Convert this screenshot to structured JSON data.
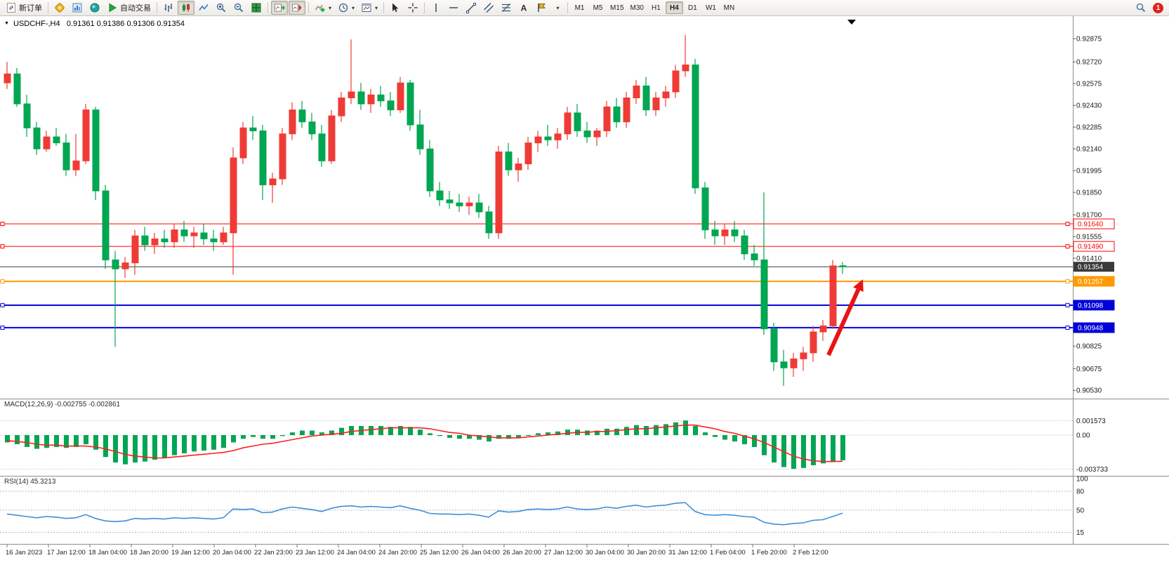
{
  "toolbar": {
    "new_order": "新订单",
    "auto_trading": "自动交易",
    "timeframes": [
      "M1",
      "M5",
      "M15",
      "M30",
      "H1",
      "H4",
      "D1",
      "W1",
      "MN"
    ],
    "active_timeframe": "H4",
    "notification_count": "1"
  },
  "chart": {
    "title_symbol": "USDCHF-,H4",
    "title_ohlc": "0.91361 0.91386 0.91306 0.91354",
    "macd_label": "MACD(12,26,9) -0.002755 -0.002861",
    "rsi_label": "RSI(14) 45.3213"
  },
  "chart_data": {
    "type": "candlestick",
    "symbol": "USDCHF-",
    "timeframe": "H4",
    "current_bar": {
      "open": 0.91361,
      "high": 0.91386,
      "low": 0.91306,
      "close": 0.91354
    },
    "up_color": "#ef3b35",
    "down_color": "#00a651",
    "price_axis_labels": [
      "0.92875",
      "0.92720",
      "0.92575",
      "0.92430",
      "0.92285",
      "0.92140",
      "0.91995",
      "0.91850",
      "0.91700",
      "0.91555",
      "0.91410",
      "0.90825",
      "0.90675",
      "0.90530"
    ],
    "time_axis_labels": [
      "16 Jan 2023",
      "17 Jan 12:00",
      "18 Jan 04:00",
      "18 Jan 20:00",
      "19 Jan 12:00",
      "20 Jan 04:00",
      "22 Jan 23:00",
      "23 Jan 12:00",
      "24 Jan 04:00",
      "24 Jan 20:00",
      "25 Jan 12:00",
      "26 Jan 04:00",
      "26 Jan 20:00",
      "27 Jan 12:00",
      "30 Jan 04:00",
      "30 Jan 20:00",
      "31 Jan 12:00",
      "1 Feb 04:00",
      "1 Feb 20:00",
      "2 Feb 12:00"
    ],
    "hlines": [
      {
        "label": "0.91640",
        "price": 0.9164,
        "color": "#ff0000",
        "style": "outline",
        "thickness": 1
      },
      {
        "label": "0.91490",
        "price": 0.9149,
        "color": "#ff0000",
        "style": "outline",
        "thickness": 1
      },
      {
        "label": "0.91257",
        "price": 0.91257,
        "color": "#ff9a00",
        "style": "solid",
        "thickness": 2
      },
      {
        "label": "0.91098",
        "price": 0.91098,
        "color": "#0000d8",
        "style": "solid",
        "thickness": 2
      },
      {
        "label": "0.90948",
        "price": 0.90948,
        "color": "#0000d8",
        "style": "solid",
        "thickness": 2
      }
    ],
    "current_price": {
      "label": "0.91354",
      "price": 0.91354,
      "color": "#3a3a3a"
    },
    "annotations": [
      {
        "type": "arrow-up",
        "color": "#ea1313"
      }
    ],
    "candles": [
      [
        0.9258,
        0.9272,
        0.9254,
        0.9264
      ],
      [
        0.9264,
        0.9268,
        0.9242,
        0.9244
      ],
      [
        0.9244,
        0.925,
        0.9222,
        0.9228
      ],
      [
        0.9228,
        0.9232,
        0.921,
        0.9214
      ],
      [
        0.9214,
        0.9226,
        0.9212,
        0.9222
      ],
      [
        0.9222,
        0.9228,
        0.9216,
        0.9218
      ],
      [
        0.9218,
        0.9224,
        0.9196,
        0.92
      ],
      [
        0.92,
        0.9224,
        0.9196,
        0.9206
      ],
      [
        0.9206,
        0.9244,
        0.9204,
        0.924
      ],
      [
        0.924,
        0.9242,
        0.918,
        0.9186
      ],
      [
        0.9186,
        0.919,
        0.9134,
        0.914
      ],
      [
        0.914,
        0.9146,
        0.9082,
        0.9134
      ],
      [
        0.9134,
        0.9142,
        0.9128,
        0.9138
      ],
      [
        0.9138,
        0.916,
        0.913,
        0.9156
      ],
      [
        0.9156,
        0.9162,
        0.9146,
        0.915
      ],
      [
        0.915,
        0.9158,
        0.9144,
        0.9154
      ],
      [
        0.9154,
        0.916,
        0.9148,
        0.9152
      ],
      [
        0.9152,
        0.9164,
        0.9148,
        0.916
      ],
      [
        0.916,
        0.9166,
        0.9152,
        0.9156
      ],
      [
        0.9156,
        0.9162,
        0.9148,
        0.9158
      ],
      [
        0.9158,
        0.9164,
        0.915,
        0.9154
      ],
      [
        0.9154,
        0.916,
        0.9146,
        0.9152
      ],
      [
        0.9152,
        0.9162,
        0.915,
        0.9158
      ],
      [
        0.9158,
        0.9215,
        0.913,
        0.9208
      ],
      [
        0.9208,
        0.9232,
        0.9204,
        0.9228
      ],
      [
        0.9228,
        0.9236,
        0.922,
        0.9226
      ],
      [
        0.9226,
        0.923,
        0.918,
        0.919
      ],
      [
        0.919,
        0.9198,
        0.9178,
        0.9194
      ],
      [
        0.9194,
        0.9228,
        0.919,
        0.9224
      ],
      [
        0.9224,
        0.9245,
        0.922,
        0.924
      ],
      [
        0.924,
        0.9246,
        0.9228,
        0.9232
      ],
      [
        0.9232,
        0.9238,
        0.922,
        0.9224
      ],
      [
        0.9224,
        0.923,
        0.9202,
        0.9206
      ],
      [
        0.9206,
        0.924,
        0.9204,
        0.9236
      ],
      [
        0.9236,
        0.9252,
        0.9232,
        0.9248
      ],
      [
        0.9248,
        0.9287,
        0.9244,
        0.9252
      ],
      [
        0.9252,
        0.9258,
        0.924,
        0.9244
      ],
      [
        0.9244,
        0.9254,
        0.9238,
        0.925
      ],
      [
        0.925,
        0.9256,
        0.9242,
        0.9246
      ],
      [
        0.9246,
        0.9252,
        0.9236,
        0.924
      ],
      [
        0.924,
        0.9262,
        0.9238,
        0.9258
      ],
      [
        0.9258,
        0.926,
        0.9226,
        0.923
      ],
      [
        0.923,
        0.924,
        0.921,
        0.9214
      ],
      [
        0.9214,
        0.922,
        0.9182,
        0.9186
      ],
      [
        0.9186,
        0.9192,
        0.9176,
        0.918
      ],
      [
        0.918,
        0.9186,
        0.9174,
        0.9178
      ],
      [
        0.9178,
        0.9184,
        0.9172,
        0.9176
      ],
      [
        0.9176,
        0.9182,
        0.917,
        0.9178
      ],
      [
        0.9178,
        0.9184,
        0.9168,
        0.9172
      ],
      [
        0.9172,
        0.9176,
        0.9154,
        0.9158
      ],
      [
        0.9158,
        0.9216,
        0.9154,
        0.9212
      ],
      [
        0.9212,
        0.9218,
        0.9196,
        0.92
      ],
      [
        0.92,
        0.9208,
        0.9192,
        0.9204
      ],
      [
        0.9204,
        0.9222,
        0.92,
        0.9218
      ],
      [
        0.9218,
        0.9226,
        0.9212,
        0.9222
      ],
      [
        0.9222,
        0.923,
        0.9216,
        0.922
      ],
      [
        0.922,
        0.9228,
        0.9214,
        0.9224
      ],
      [
        0.9224,
        0.9242,
        0.922,
        0.9238
      ],
      [
        0.9238,
        0.9244,
        0.9222,
        0.9226
      ],
      [
        0.9226,
        0.9232,
        0.9218,
        0.9222
      ],
      [
        0.9222,
        0.9228,
        0.9216,
        0.9226
      ],
      [
        0.9226,
        0.9246,
        0.9222,
        0.9242
      ],
      [
        0.9242,
        0.9248,
        0.9228,
        0.9232
      ],
      [
        0.9232,
        0.9252,
        0.9228,
        0.9248
      ],
      [
        0.9248,
        0.926,
        0.9244,
        0.9256
      ],
      [
        0.9256,
        0.9262,
        0.9236,
        0.924
      ],
      [
        0.924,
        0.9252,
        0.9236,
        0.9248
      ],
      [
        0.9248,
        0.9256,
        0.9242,
        0.9252
      ],
      [
        0.9252,
        0.927,
        0.9248,
        0.9266
      ],
      [
        0.9266,
        0.929,
        0.9262,
        0.927
      ],
      [
        0.927,
        0.9274,
        0.9184,
        0.9188
      ],
      [
        0.9188,
        0.9192,
        0.9154,
        0.916
      ],
      [
        0.916,
        0.9166,
        0.915,
        0.9156
      ],
      [
        0.9156,
        0.9164,
        0.915,
        0.916
      ],
      [
        0.916,
        0.9166,
        0.9152,
        0.9156
      ],
      [
        0.9156,
        0.916,
        0.914,
        0.9144
      ],
      [
        0.9144,
        0.915,
        0.9136,
        0.914
      ],
      [
        0.914,
        0.9185,
        0.909,
        0.9094
      ],
      [
        0.9094,
        0.9098,
        0.9066,
        0.9072
      ],
      [
        0.9072,
        0.908,
        0.9056,
        0.9068
      ],
      [
        0.9068,
        0.9078,
        0.9062,
        0.9074
      ],
      [
        0.9074,
        0.9082,
        0.9066,
        0.9078
      ],
      [
        0.9078,
        0.9096,
        0.9072,
        0.9092
      ],
      [
        0.9092,
        0.91,
        0.9086,
        0.9096
      ],
      [
        0.9096,
        0.914,
        0.9094,
        0.9136
      ],
      [
        0.91361,
        0.91386,
        0.91306,
        0.91354
      ]
    ],
    "macd": {
      "params": "12,26,9",
      "value": -0.002755,
      "signal_value": -0.002861,
      "scale_labels": [
        {
          "text": "0.001573",
          "value": 0.001573
        },
        {
          "text": "0.00",
          "value": 0
        },
        {
          "text": "-0.003733",
          "value": -0.003733
        }
      ],
      "histogram": [
        -0.0008,
        -0.001,
        -0.0013,
        -0.0015,
        -0.0014,
        -0.0013,
        -0.0014,
        -0.0013,
        -0.001,
        -0.0016,
        -0.0024,
        -0.003,
        -0.0032,
        -0.003,
        -0.0029,
        -0.0027,
        -0.0025,
        -0.0022,
        -0.002,
        -0.0018,
        -0.0017,
        -0.0016,
        -0.0014,
        -0.0008,
        -0.0004,
        -0.0002,
        -0.0004,
        -0.0004,
        -0.0001,
        0.0003,
        0.0005,
        0.0005,
        0.0003,
        0.0005,
        0.0008,
        0.001,
        0.001,
        0.001,
        0.001,
        0.0009,
        0.001,
        0.0009,
        0.0006,
        0.0002,
        -0.0001,
        -0.0003,
        -0.0004,
        -0.0004,
        -0.0005,
        -0.0007,
        -0.0004,
        -0.0004,
        -0.0003,
        0.0,
        0.0002,
        0.0003,
        0.0004,
        0.0006,
        0.0006,
        0.0005,
        0.0005,
        0.0007,
        0.0007,
        0.0009,
        0.0011,
        0.001,
        0.0011,
        0.0012,
        0.0014,
        0.0016,
        0.001,
        0.0003,
        -0.0002,
        -0.0005,
        -0.0007,
        -0.001,
        -0.0013,
        -0.0022,
        -0.003,
        -0.0035,
        -0.0037,
        -0.0036,
        -0.0033,
        -0.0031,
        -0.0029,
        -0.002755
      ],
      "signal": [
        -0.0006,
        -0.0007,
        -0.0008,
        -0.001,
        -0.0011,
        -0.0011,
        -0.0012,
        -0.0012,
        -0.0012,
        -0.0013,
        -0.0015,
        -0.0018,
        -0.0021,
        -0.0023,
        -0.0024,
        -0.0025,
        -0.0025,
        -0.0024,
        -0.0023,
        -0.0022,
        -0.0021,
        -0.002,
        -0.0019,
        -0.0017,
        -0.0014,
        -0.0012,
        -0.001,
        -0.0009,
        -0.0007,
        -0.0005,
        -0.0003,
        -0.0001,
        0.0,
        0.0001,
        0.0002,
        0.0004,
        0.0005,
        0.0006,
        0.0007,
        0.0008,
        0.0008,
        0.0008,
        0.0008,
        0.0007,
        0.0005,
        0.0003,
        0.0002,
        0.0,
        -0.0001,
        -0.0002,
        -0.0003,
        -0.0003,
        -0.0003,
        -0.0002,
        -0.0001,
        0.0,
        0.0001,
        0.0002,
        0.0003,
        0.0003,
        0.0004,
        0.0004,
        0.0005,
        0.0006,
        0.0007,
        0.0007,
        0.0008,
        0.0009,
        0.001,
        0.0011,
        0.0011,
        0.0009,
        0.0007,
        0.0004,
        0.0002,
        -0.0001,
        -0.0004,
        -0.0008,
        -0.0013,
        -0.0018,
        -0.0023,
        -0.0026,
        -0.0028,
        -0.0029,
        -0.0029,
        -0.002861
      ]
    },
    "rsi": {
      "period": 14,
      "value": 45.3213,
      "levels": [
        {
          "text": "100",
          "value": 100
        },
        {
          "text": "80",
          "value": 80
        },
        {
          "text": "50",
          "value": 50
        },
        {
          "text": "15",
          "value": 15
        }
      ],
      "values": [
        44,
        42,
        40,
        38,
        40,
        39,
        37,
        38,
        43,
        37,
        33,
        32,
        33,
        37,
        36,
        37,
        36,
        38,
        37,
        38,
        37,
        36,
        38,
        52,
        51,
        52,
        46,
        47,
        52,
        55,
        53,
        51,
        48,
        53,
        56,
        57,
        55,
        56,
        55,
        54,
        57,
        53,
        50,
        45,
        44,
        44,
        43,
        44,
        42,
        39,
        49,
        47,
        48,
        51,
        52,
        51,
        52,
        55,
        52,
        51,
        52,
        55,
        53,
        56,
        58,
        55,
        57,
        58,
        61,
        62,
        48,
        43,
        42,
        43,
        42,
        40,
        39,
        31,
        28,
        27,
        29,
        30,
        34,
        35,
        40,
        45.3213
      ]
    }
  }
}
